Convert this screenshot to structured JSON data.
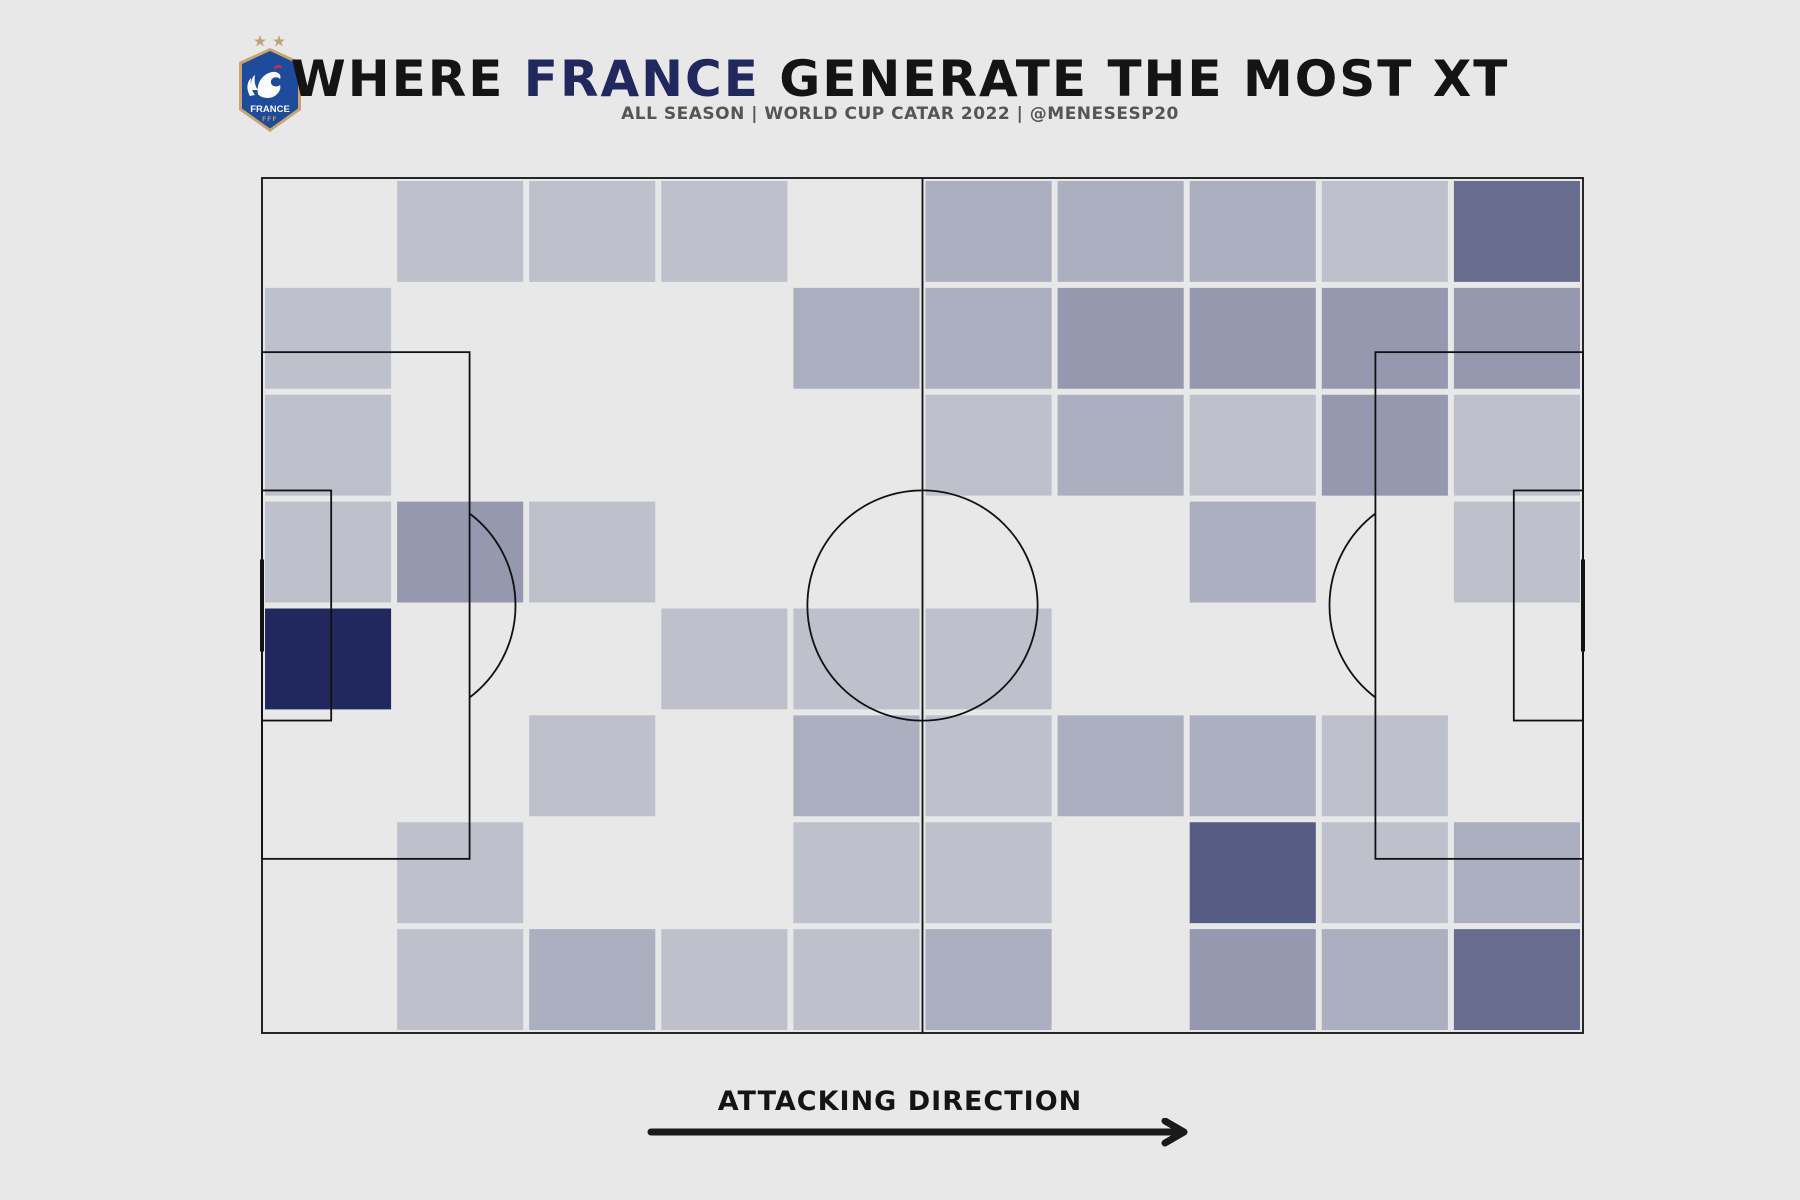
{
  "header": {
    "title_pre": "WHERE ",
    "title_highlight": "FRANCE",
    "title_post": " GENERATE THE MOST XT",
    "subtitle": "ALL SEASON | WORLD CUP CATAR 2022 | @MENESESP20"
  },
  "logo": {
    "text": "FRANCE",
    "subtext": "FFF",
    "icon": "rooster-icon",
    "colors": {
      "shield": "#1e4b9c",
      "border": "#c9a56a",
      "star": "#bfa27a"
    }
  },
  "footer": {
    "direction_label": "ATTACKING DIRECTION",
    "arrow_icon": "arrow-right-icon"
  },
  "colors": {
    "background": "#e8e8e8",
    "title_text": "#141414",
    "highlight": "#20285e",
    "heat_base": "#e8e8e8",
    "heat_max": "#20285e",
    "lines": "#111111"
  },
  "chart_data": {
    "type": "heatmap",
    "title": "WHERE FRANCE GENERATE THE MOST XT",
    "subtitle": "ALL SEASON | WORLD CUP CATAR 2022 | @MENESESP20",
    "xlabel": "ATTACKING DIRECTION",
    "ylabel": "",
    "bins": {
      "columns": 10,
      "rows": 8
    },
    "values_scale": "relative intensity 0 (none) to 1 (max)",
    "values": [
      [
        0,
        0.12,
        0.12,
        0.12,
        0,
        0.22,
        0.22,
        0.22,
        0.12,
        0.6
      ],
      [
        0.12,
        0,
        0,
        0,
        0.22,
        0.22,
        0.35,
        0.35,
        0.35,
        0.35
      ],
      [
        0.12,
        0,
        0,
        0,
        0,
        0.12,
        0.22,
        0.12,
        0.35,
        0.12
      ],
      [
        0.12,
        0.35,
        0.12,
        0,
        0,
        0,
        0,
        0.22,
        0,
        0.12
      ],
      [
        1.0,
        0,
        0,
        0.12,
        0.12,
        0.12,
        0,
        0,
        0,
        0
      ],
      [
        0,
        0,
        0.12,
        0,
        0.22,
        0.12,
        0.22,
        0.22,
        0.12,
        0
      ],
      [
        0,
        0.12,
        0,
        0,
        0.12,
        0.12,
        0,
        0.7,
        0.12,
        0.22
      ],
      [
        0,
        0.12,
        0.22,
        0.12,
        0.12,
        0.22,
        0,
        0.35,
        0.22,
        0.6
      ]
    ]
  }
}
